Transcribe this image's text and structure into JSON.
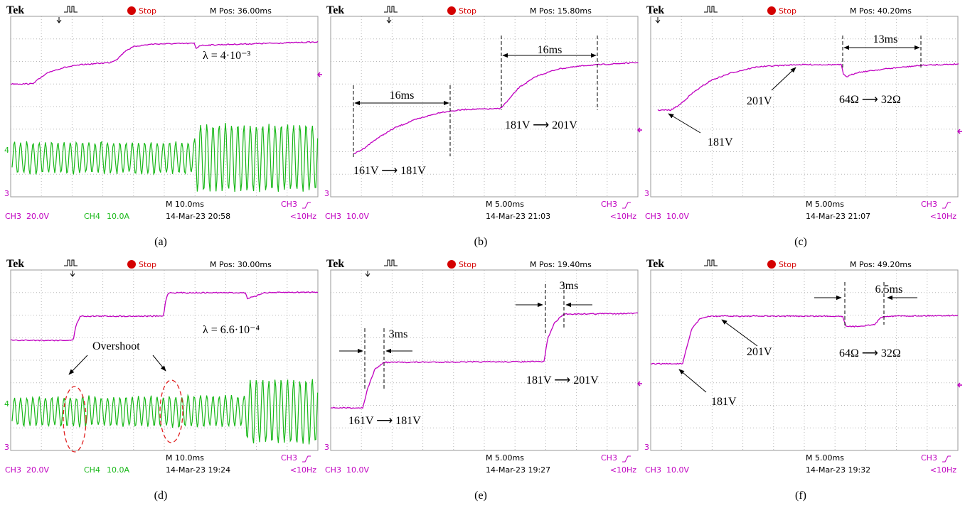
{
  "panels": [
    {
      "header": {
        "brand": "Tek",
        "status": "Stop",
        "m_pos": "M Pos: 36.00ms"
      },
      "footer": {
        "timebase": "M 10.0ms",
        "trigger": "CH3",
        "ch3": "CH3",
        "ch3_scale": "20.0V",
        "ch4": "CH4",
        "ch4_scale": "10.0A",
        "date": "14-Mar-23 20:58",
        "trigger_freq": "<10Hz",
        "ch3_marker": "3",
        "ch4_marker": "4"
      },
      "annotations": [
        "λ = 4·10⁻³"
      ],
      "caption": "(a)"
    },
    {
      "header": {
        "brand": "Tek",
        "status": "Stop",
        "m_pos": "M Pos: 15.80ms"
      },
      "footer": {
        "timebase": "M 5.00ms",
        "trigger": "CH3",
        "ch3": "CH3",
        "ch3_scale": "10.0V",
        "date": "14-Mar-23 21:03",
        "trigger_freq": "<10Hz",
        "ch3_marker": "3"
      },
      "annotations": [
        "16ms",
        "16ms",
        "161V ⟶ 181V",
        "181V ⟶ 201V"
      ],
      "caption": "(b)"
    },
    {
      "header": {
        "brand": "Tek",
        "status": "Stop",
        "m_pos": "M Pos: 40.20ms"
      },
      "footer": {
        "timebase": "M 5.00ms",
        "trigger": "CH3",
        "ch3": "CH3",
        "ch3_scale": "10.0V",
        "date": "14-Mar-23 21:07",
        "trigger_freq": "<10Hz",
        "ch3_marker": "3"
      },
      "annotations": [
        "13ms",
        "201V",
        "181V",
        "64Ω ⟶ 32Ω"
      ],
      "caption": "(c)"
    },
    {
      "header": {
        "brand": "Tek",
        "status": "Stop",
        "m_pos": "M Pos: 30.00ms"
      },
      "footer": {
        "timebase": "M 10.0ms",
        "trigger": "CH3",
        "ch3": "CH3",
        "ch3_scale": "20.0V",
        "ch4": "CH4",
        "ch4_scale": "10.0A",
        "date": "14-Mar-23 19:24",
        "trigger_freq": "<10Hz",
        "ch3_marker": "3",
        "ch4_marker": "4"
      },
      "annotations": [
        "λ = 6.6·10⁻⁴",
        "Overshoot"
      ],
      "caption": "(d)"
    },
    {
      "header": {
        "brand": "Tek",
        "status": "Stop",
        "m_pos": "M Pos: 19.40ms"
      },
      "footer": {
        "timebase": "M 5.00ms",
        "trigger": "CH3",
        "ch3": "CH3",
        "ch3_scale": "10.0V",
        "date": "14-Mar-23 19:27",
        "trigger_freq": "<10Hz",
        "ch3_marker": "3"
      },
      "annotations": [
        "3ms",
        "3ms",
        "161V ⟶ 181V",
        "181V ⟶ 201V"
      ],
      "caption": "(e)"
    },
    {
      "header": {
        "brand": "Tek",
        "status": "Stop",
        "m_pos": "M Pos: 49.20ms"
      },
      "footer": {
        "timebase": "M 5.00ms",
        "trigger": "CH3",
        "ch3": "CH3",
        "ch3_scale": "10.0V",
        "date": "14-Mar-23 19:32",
        "trigger_freq": "<10Hz",
        "ch3_marker": "3"
      },
      "annotations": [
        "6.5ms",
        "201V",
        "181V",
        "64Ω ⟶ 32Ω"
      ],
      "caption": "(f)"
    }
  ]
}
